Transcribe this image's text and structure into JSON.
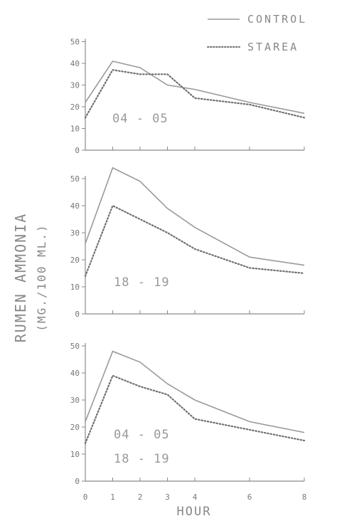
{
  "chart_data": {
    "type": "line",
    "y_axis_label": "RUMEN AMMONIA",
    "y_axis_unit": "(MG./100 ML.)",
    "x_axis_label": "HOUR",
    "x_tick_labels": [
      "0",
      "1",
      "2",
      "3",
      "4",
      "6",
      "8"
    ],
    "y_tick_labels": [
      "0",
      "10",
      "20",
      "30",
      "40",
      "50"
    ],
    "ylim": [
      0,
      50
    ],
    "xlim": [
      0,
      8
    ],
    "legend": {
      "placement": "top-right",
      "entries": [
        "CONTROL",
        "STAREA"
      ]
    },
    "colors": {
      "control": "#9a9a9a",
      "starea": "#6f6f6f",
      "axis": "#8a8a8a"
    },
    "panels": [
      {
        "label_lines": [
          "04 - 05"
        ],
        "series": [
          {
            "name": "CONTROL",
            "style": "solid",
            "x": [
              0,
              1,
              2,
              3,
              4,
              6,
              8
            ],
            "y": [
              22,
              41,
              38,
              30,
              28,
              22,
              17
            ]
          },
          {
            "name": "STAREA",
            "style": "dotted",
            "x": [
              0,
              1,
              2,
              3,
              4,
              6,
              8
            ],
            "y": [
              15,
              37,
              35,
              35,
              24,
              21,
              15
            ]
          }
        ]
      },
      {
        "label_lines": [
          "18 - 19"
        ],
        "series": [
          {
            "name": "CONTROL",
            "style": "solid",
            "x": [
              0,
              1,
              2,
              3,
              4,
              6,
              8
            ],
            "y": [
              26,
              54,
              49,
              39,
              32,
              21,
              18
            ]
          },
          {
            "name": "STAREA",
            "style": "dotted",
            "x": [
              0,
              1,
              2,
              3,
              4,
              6,
              8
            ],
            "y": [
              14,
              40,
              35,
              30,
              24,
              17,
              15
            ]
          }
        ]
      },
      {
        "label_lines": [
          "04 - 05",
          "18 - 19"
        ],
        "series": [
          {
            "name": "CONTROL",
            "style": "solid",
            "x": [
              0,
              1,
              2,
              3,
              4,
              6,
              8
            ],
            "y": [
              22,
              48,
              44,
              36,
              30,
              22,
              18
            ]
          },
          {
            "name": "STAREA",
            "style": "dotted",
            "x": [
              0,
              1,
              2,
              3,
              4,
              6,
              8
            ],
            "y": [
              14,
              39,
              35,
              32,
              23,
              19,
              15
            ]
          }
        ]
      }
    ]
  }
}
